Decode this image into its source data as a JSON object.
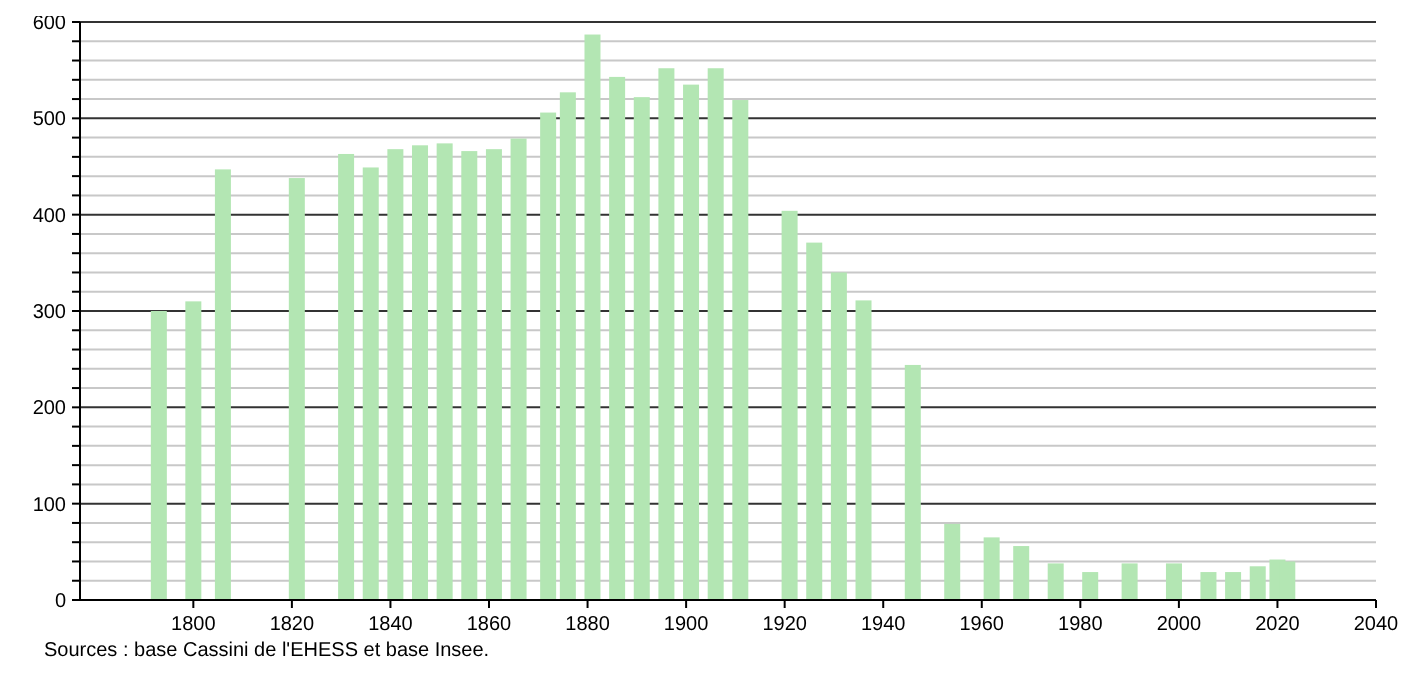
{
  "chart_data": {
    "type": "bar",
    "x": [
      1793,
      1800,
      1806,
      1821,
      1831,
      1836,
      1841,
      1846,
      1851,
      1856,
      1861,
      1866,
      1872,
      1876,
      1881,
      1886,
      1891,
      1896,
      1901,
      1906,
      1911,
      1921,
      1926,
      1931,
      1936,
      1946,
      1954,
      1962,
      1968,
      1975,
      1982,
      1990,
      1999,
      2006,
      2011,
      2016,
      2020,
      2022
    ],
    "values": [
      300,
      310,
      447,
      438,
      463,
      449,
      468,
      472,
      474,
      466,
      468,
      479,
      506,
      527,
      587,
      543,
      522,
      552,
      535,
      552,
      519,
      404,
      371,
      340,
      311,
      244,
      79,
      65,
      56,
      38,
      29,
      38,
      38,
      29,
      29,
      35,
      42,
      40
    ],
    "color": "#b3e6b3",
    "xlim": [
      1777,
      2040
    ],
    "xticks": [
      1800,
      1820,
      1840,
      1860,
      1880,
      1900,
      1920,
      1940,
      1960,
      1980,
      2000,
      2020,
      2040
    ],
    "ylim": [
      0,
      600
    ],
    "yticks": [
      0,
      {
        "value": 20,
        "label": null
      },
      {
        "value": 40,
        "label": null
      },
      {
        "value": 60,
        "label": null
      },
      {
        "value": 80,
        "label": null
      },
      100,
      {
        "value": 120,
        "label": null
      },
      {
        "value": 140,
        "label": null
      },
      {
        "value": 160,
        "label": null
      },
      {
        "value": 180,
        "label": null
      },
      200,
      {
        "value": 220,
        "label": null
      },
      {
        "value": 240,
        "label": null
      },
      {
        "value": 260,
        "label": null
      },
      {
        "value": 280,
        "label": null
      },
      300,
      {
        "value": 320,
        "label": null
      },
      {
        "value": 340,
        "label": null
      },
      {
        "value": 360,
        "label": null
      },
      {
        "value": 380,
        "label": null
      },
      400,
      {
        "value": 420,
        "label": null
      },
      {
        "value": 440,
        "label": null
      },
      {
        "value": 460,
        "label": null
      },
      {
        "value": 480,
        "label": null
      },
      500,
      {
        "value": 520,
        "label": null
      },
      {
        "value": 540,
        "label": null
      },
      {
        "value": 560,
        "label": null
      },
      {
        "value": 580,
        "label": null
      },
      600
    ],
    "grid": true,
    "annotations": [
      "Sources : base Cassini de l'EHESS et base Insee."
    ]
  }
}
